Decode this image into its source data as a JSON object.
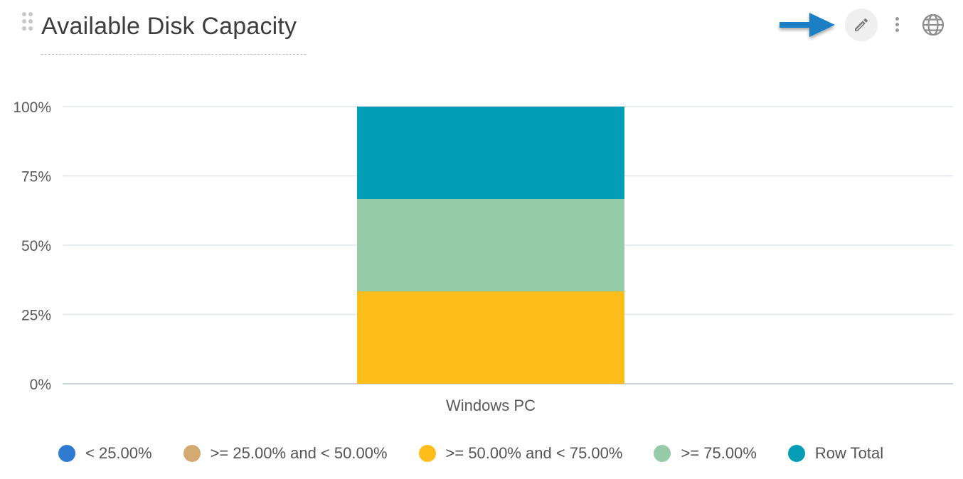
{
  "widget": {
    "title": "Available Disk Capacity"
  },
  "toolbar": {
    "edit_icon": "pencil-icon",
    "more_icon": "more-vertical-icon",
    "globe_icon": "globe-icon",
    "arrow_color": "#1a7fc4"
  },
  "chart_data": {
    "type": "bar",
    "stacked": true,
    "normalized": true,
    "categories": [
      "Windows PC"
    ],
    "y_ticks": [
      "0%",
      "25%",
      "50%",
      "75%",
      "100%"
    ],
    "ylim": [
      0,
      100
    ],
    "grid": true,
    "legend_position": "bottom",
    "series": [
      {
        "name": "< 25.00%",
        "color": "#2f7bd2",
        "values": [
          0
        ]
      },
      {
        "name": ">= 25.00% and < 50.00%",
        "color": "#d2aa72",
        "values": [
          0
        ]
      },
      {
        "name": ">= 50.00% and < 75.00%",
        "color": "#fdbd1b",
        "values": [
          33.33
        ]
      },
      {
        "name": ">= 75.00%",
        "color": "#95cba9",
        "values": [
          33.33
        ]
      },
      {
        "name": "Row Total",
        "color": "#029eb6",
        "values": [
          33.34
        ]
      }
    ]
  }
}
